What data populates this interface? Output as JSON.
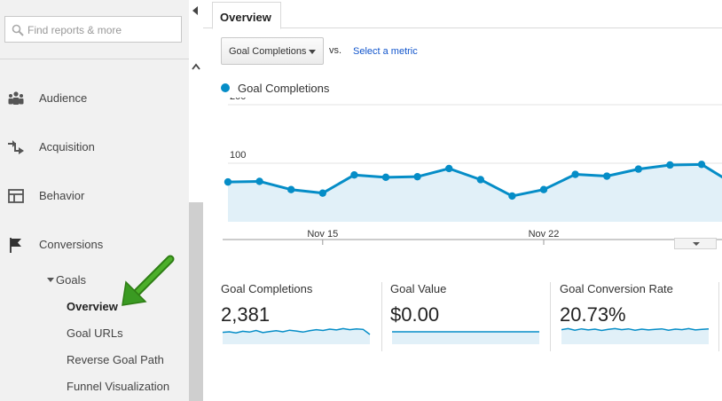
{
  "sidebar": {
    "search_placeholder": "Find reports & more",
    "nav": [
      {
        "label": "Audience",
        "icon": "people-icon"
      },
      {
        "label": "Acquisition",
        "icon": "acquisition-arrows-icon"
      },
      {
        "label": "Behavior",
        "icon": "layout-grid-icon"
      },
      {
        "label": "Conversions",
        "icon": "flag-icon"
      }
    ],
    "goals_label": "Goals",
    "goals_items": [
      "Overview",
      "Goal URLs",
      "Reverse Goal Path",
      "Funnel Visualization"
    ],
    "active_item": "Overview"
  },
  "tabs": {
    "overview": "Overview"
  },
  "toolbar": {
    "metric_select": "Goal Completions",
    "vs_label": "vs.",
    "compare_link": "Select a metric"
  },
  "colors": {
    "series": "#058dc7",
    "area": "#e1f0f8",
    "link": "#1155cc",
    "arrow": "#3a9a22"
  },
  "chart_data": {
    "type": "line",
    "title": "",
    "series": [
      {
        "name": "Goal Completions",
        "values": [
          68,
          69,
          55,
          49,
          80,
          76,
          77,
          91,
          72,
          44,
          55,
          81,
          78,
          90,
          97,
          98,
          65
        ]
      }
    ],
    "x_tick_labels": [
      "Nov 15",
      "Nov 22"
    ],
    "y_tick_labels": [
      "200",
      "100"
    ],
    "ylim": [
      0,
      200
    ],
    "grid": true,
    "fill": true
  },
  "scorecards": [
    {
      "title": "Goal Completions",
      "value": "2,381",
      "spark": [
        38,
        40,
        36,
        42,
        39,
        45,
        37,
        41,
        44,
        40,
        46,
        43,
        39,
        44,
        48,
        45,
        50,
        47,
        52,
        48,
        51,
        49,
        30
      ]
    },
    {
      "title": "Goal Value",
      "value": "$0.00",
      "spark": [
        40,
        40,
        40,
        40,
        40,
        40,
        40,
        40,
        40,
        40,
        40,
        40,
        40,
        40,
        40,
        40,
        40,
        40,
        40,
        40,
        40,
        40,
        40
      ]
    },
    {
      "title": "Goal Conversion Rate",
      "value": "20.73%",
      "spark": [
        48,
        52,
        46,
        51,
        47,
        50,
        45,
        49,
        52,
        48,
        51,
        46,
        50,
        47,
        49,
        51,
        46,
        50,
        48,
        52,
        47,
        49,
        51
      ]
    }
  ]
}
